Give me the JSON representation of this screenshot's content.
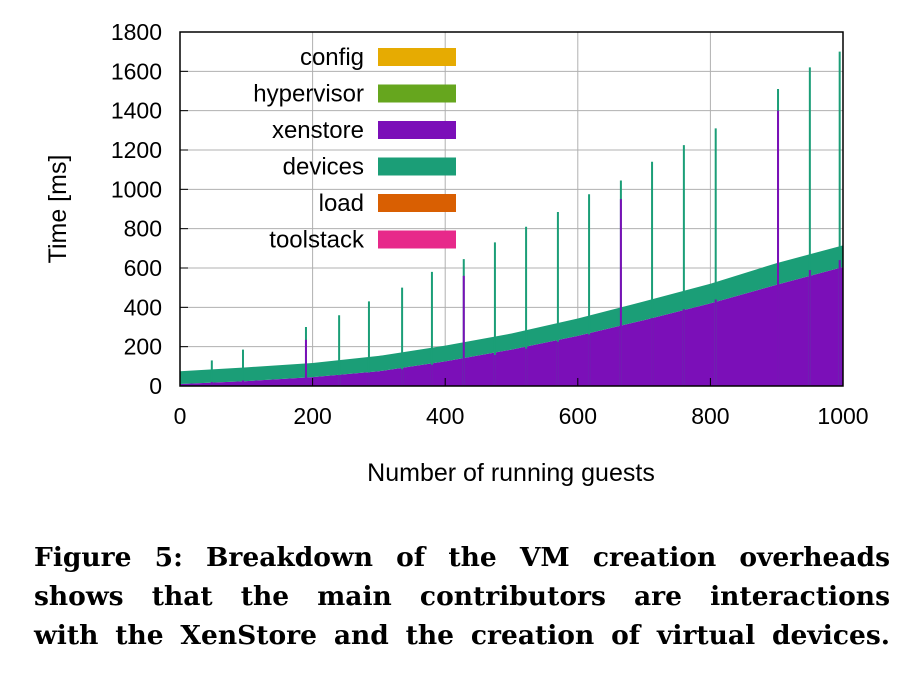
{
  "chart_data": {
    "type": "area",
    "stacked": true,
    "xlabel": "Number of running guests",
    "ylabel": "Time [ms]",
    "xlim": [
      0,
      1000
    ],
    "ylim": [
      0,
      1800
    ],
    "xticks": [
      0,
      200,
      400,
      600,
      800,
      1000
    ],
    "yticks": [
      0,
      200,
      400,
      600,
      800,
      1000,
      1200,
      1400,
      1600,
      1800
    ],
    "grid": true,
    "legend_position": "top-left",
    "legend": [
      "config",
      "hypervisor",
      "xenstore",
      "devices",
      "load",
      "toolstack"
    ],
    "colors": {
      "config": "#e6ab02",
      "hypervisor": "#66a61e",
      "xenstore": "#7b0fb8",
      "devices": "#1b9e77",
      "load": "#d95f02",
      "toolstack": "#e7298a"
    },
    "x": [
      0,
      100,
      200,
      300,
      400,
      500,
      600,
      700,
      800,
      900,
      1000
    ],
    "series": [
      {
        "name": "toolstack",
        "values": [
          0,
          0,
          0,
          0,
          0,
          0,
          0,
          0,
          0,
          0,
          0
        ]
      },
      {
        "name": "load",
        "values": [
          0,
          0,
          0,
          0,
          0,
          0,
          0,
          0,
          0,
          0,
          0
        ]
      },
      {
        "name": "devices",
        "values": [
          65,
          70,
          72,
          78,
          80,
          82,
          88,
          95,
          100,
          110,
          110
        ]
      },
      {
        "name": "xenstore",
        "values": [
          10,
          25,
          45,
          75,
          125,
          185,
          255,
          335,
          420,
          515,
          605
        ]
      },
      {
        "name": "hypervisor",
        "values": [
          0,
          0,
          0,
          0,
          0,
          0,
          0,
          0,
          0,
          0,
          0
        ]
      },
      {
        "name": "config",
        "values": [
          0,
          0,
          0,
          0,
          0,
          0,
          0,
          0,
          0,
          0,
          0
        ]
      }
    ],
    "spikes": [
      {
        "x": 48,
        "total": 130,
        "xenstore": 20
      },
      {
        "x": 95,
        "total": 185,
        "xenstore": 28
      },
      {
        "x": 190,
        "total": 300,
        "xenstore": 235
      },
      {
        "x": 240,
        "total": 360,
        "xenstore": 55
      },
      {
        "x": 285,
        "total": 430,
        "xenstore": 68
      },
      {
        "x": 335,
        "total": 500,
        "xenstore": 85
      },
      {
        "x": 380,
        "total": 580,
        "xenstore": 108
      },
      {
        "x": 428,
        "total": 645,
        "xenstore": 560
      },
      {
        "x": 475,
        "total": 730,
        "xenstore": 158
      },
      {
        "x": 522,
        "total": 810,
        "xenstore": 190
      },
      {
        "x": 570,
        "total": 885,
        "xenstore": 225
      },
      {
        "x": 617,
        "total": 975,
        "xenstore": 262
      },
      {
        "x": 665,
        "total": 1045,
        "xenstore": 950
      },
      {
        "x": 712,
        "total": 1140,
        "xenstore": 345
      },
      {
        "x": 760,
        "total": 1225,
        "xenstore": 390
      },
      {
        "x": 808,
        "total": 1310,
        "xenstore": 440
      },
      {
        "x": 902,
        "total": 1510,
        "xenstore": 1400
      },
      {
        "x": 950,
        "total": 1620,
        "xenstore": 590
      },
      {
        "x": 995,
        "total": 1700,
        "xenstore": 640
      }
    ]
  },
  "caption": {
    "line1": "Figure 5: Breakdown of the VM creation overheads",
    "line2": "shows that the main contributors are interactions",
    "line3": "with the XenStore and the creation of virtual devices."
  }
}
